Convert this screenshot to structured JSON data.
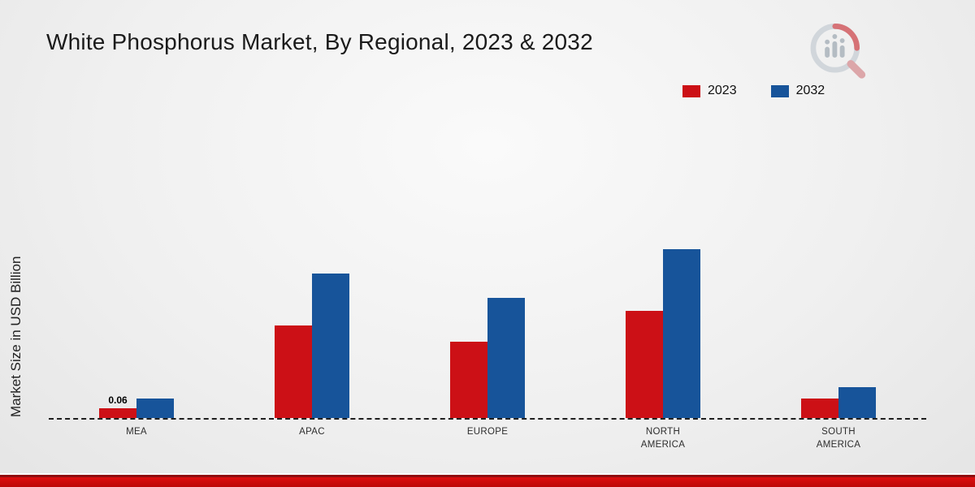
{
  "page": {
    "title": "White Phosphorus Market, By Regional, 2023 & 2032",
    "y_axis_label": "Market Size in USD Billion"
  },
  "legend": {
    "items": [
      {
        "label": "2023",
        "color": "#cc1016"
      },
      {
        "label": "2032",
        "color": "#17549a"
      }
    ]
  },
  "chart_data": {
    "type": "bar",
    "title": "White Phosphorus Market, By Regional, 2023 & 2032",
    "xlabel": "",
    "ylabel": "Market Size in USD Billion",
    "units": "USD Billion",
    "categories": [
      "MEA",
      "APAC",
      "EUROPE",
      "NORTH AMERICA",
      "SOUTH AMERICA"
    ],
    "series": [
      {
        "name": "2023",
        "color": "#cc1016",
        "values": [
          0.06,
          0.57,
          0.47,
          0.66,
          0.12
        ]
      },
      {
        "name": "2032",
        "color": "#17549a",
        "values": [
          0.12,
          0.89,
          0.74,
          1.04,
          0.19
        ]
      }
    ],
    "ylim": [
      0,
      1.2
    ],
    "grid": false,
    "legend_position": "top-right",
    "baseline": "dashed",
    "data_labels": [
      {
        "category_index": 0,
        "series_index": 0,
        "text": "0.06"
      }
    ]
  },
  "branding": {
    "logo": "market-research-future-logo"
  },
  "footer": {
    "bar_color": "#bd0808"
  }
}
